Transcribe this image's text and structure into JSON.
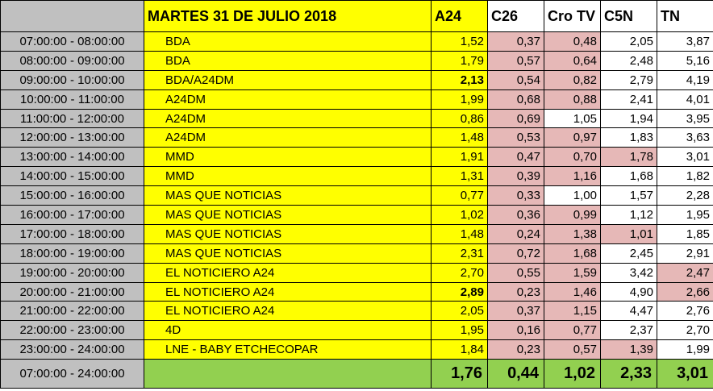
{
  "header": {
    "title": "MARTES 31 DE JULIO 2018",
    "channels": [
      "A24",
      "C26",
      "Cro TV",
      "C5N",
      "TN"
    ]
  },
  "rows": [
    {
      "time": "07:00:00 - 08:00:00",
      "program": "BDA",
      "a24": "1,52",
      "c26": "0,37",
      "crotv": "0,48",
      "c5n": "2,05",
      "tn": "3,87"
    },
    {
      "time": "08:00:00 - 09:00:00",
      "program": "BDA",
      "a24": "1,79",
      "c26": "0,57",
      "crotv": "0,64",
      "c5n": "2,48",
      "tn": "5,16"
    },
    {
      "time": "09:00:00 - 10:00:00",
      "program": "BDA/A24DM",
      "a24": "2,13",
      "c26": "0,54",
      "crotv": "0,82",
      "c5n": "2,79",
      "tn": "4,19"
    },
    {
      "time": "10:00:00 - 11:00:00",
      "program": "A24DM",
      "a24": "1,99",
      "c26": "0,68",
      "crotv": "0,88",
      "c5n": "2,41",
      "tn": "4,01"
    },
    {
      "time": "11:00:00 - 12:00:00",
      "program": "A24DM",
      "a24": "0,86",
      "c26": "0,69",
      "crotv": "1,05",
      "c5n": "1,94",
      "tn": "3,95"
    },
    {
      "time": "12:00:00 - 13:00:00",
      "program": "A24DM",
      "a24": "1,48",
      "c26": "0,53",
      "crotv": "0,97",
      "c5n": "1,83",
      "tn": "3,63"
    },
    {
      "time": "13:00:00 - 14:00:00",
      "program": "MMD",
      "a24": "1,91",
      "c26": "0,47",
      "crotv": "0,70",
      "c5n": "1,78",
      "tn": "3,01"
    },
    {
      "time": "14:00:00 - 15:00:00",
      "program": "MMD",
      "a24": "1,31",
      "c26": "0,39",
      "crotv": "1,16",
      "c5n": "1,68",
      "tn": "1,82"
    },
    {
      "time": "15:00:00 - 16:00:00",
      "program": "MAS QUE NOTICIAS",
      "a24": "0,77",
      "c26": "0,33",
      "crotv": "1,00",
      "c5n": "1,57",
      "tn": "2,28"
    },
    {
      "time": "16:00:00 - 17:00:00",
      "program": "MAS QUE NOTICIAS",
      "a24": "1,02",
      "c26": "0,36",
      "crotv": "0,99",
      "c5n": "1,12",
      "tn": "1,95"
    },
    {
      "time": "17:00:00 - 18:00:00",
      "program": "MAS QUE NOTICIAS",
      "a24": "1,48",
      "c26": "0,24",
      "crotv": "1,38",
      "c5n": "1,01",
      "tn": "1,85"
    },
    {
      "time": "18:00:00 - 19:00:00",
      "program": "MAS QUE NOTICIAS",
      "a24": "2,31",
      "c26": "0,72",
      "crotv": "1,68",
      "c5n": "2,45",
      "tn": "2,91"
    },
    {
      "time": "19:00:00 - 20:00:00",
      "program": "EL NOTICIERO A24",
      "a24": "2,70",
      "c26": "0,55",
      "crotv": "1,59",
      "c5n": "3,42",
      "tn": "2,47"
    },
    {
      "time": "20:00:00 - 21:00:00",
      "program": "EL NOTICIERO A24",
      "a24": "2,89",
      "c26": "0,23",
      "crotv": "1,46",
      "c5n": "4,90",
      "tn": "2,66"
    },
    {
      "time": "21:00:00 - 22:00:00",
      "program": "EL NOTICIERO A24",
      "a24": "2,05",
      "c26": "0,37",
      "crotv": "1,15",
      "c5n": "4,47",
      "tn": "2,76"
    },
    {
      "time": "22:00:00 - 23:00:00",
      "program": "4D",
      "a24": "1,95",
      "c26": "0,16",
      "crotv": "0,77",
      "c5n": "2,37",
      "tn": "2,70"
    },
    {
      "time": "23:00:00 - 24:00:00",
      "program": "LNE - BABY ETCHECOPAR",
      "a24": "1,84",
      "c26": "0,23",
      "crotv": "0,57",
      "c5n": "1,39",
      "tn": "1,99"
    }
  ],
  "total": {
    "time": "07:00:00 - 24:00:00",
    "a24": "1,76",
    "c26": "0,44",
    "crotv": "1,02",
    "c5n": "2,33",
    "tn": "3,01"
  },
  "colors": {
    "yellow": "#ffff00",
    "pink": "#e6b8b7",
    "gray": "#c0c0c0",
    "green": "#92d050",
    "white": "#ffffff"
  }
}
